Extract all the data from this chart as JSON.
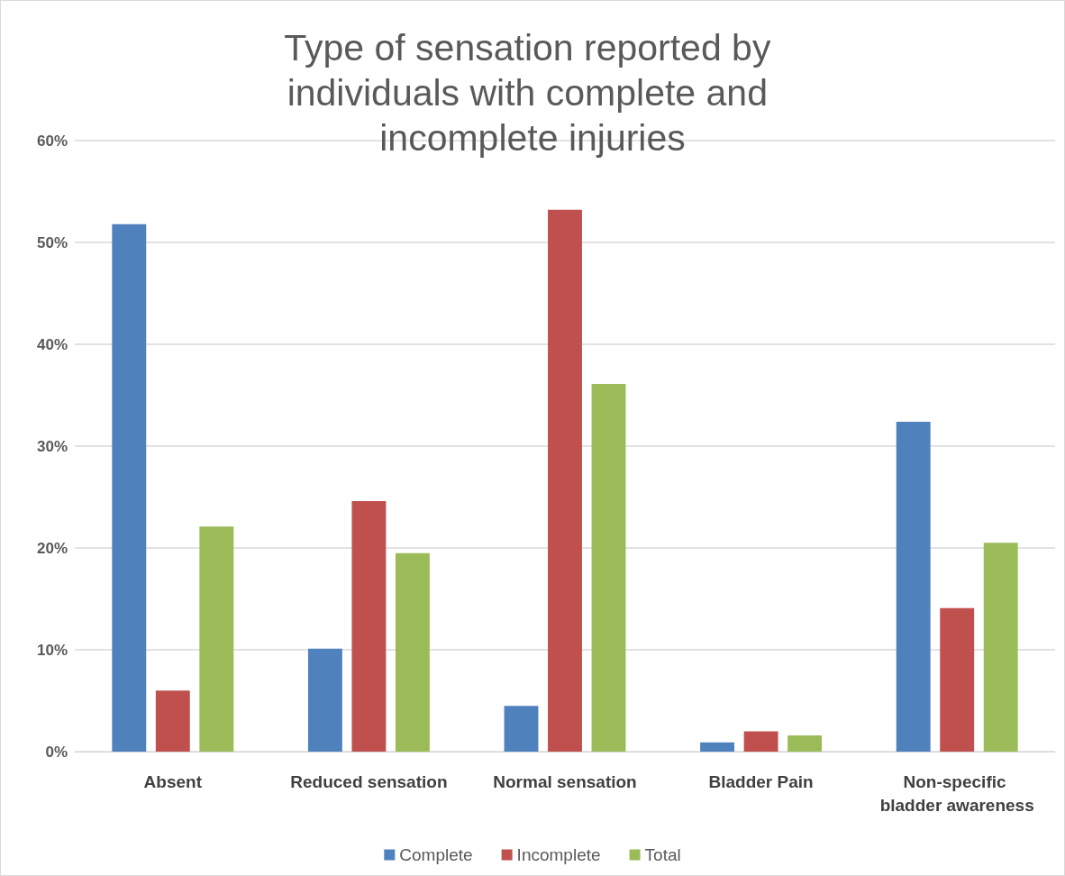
{
  "chart_data": {
    "type": "bar",
    "title": "Type of sensation reported by individuals with complete and incomplete injuries",
    "categories": [
      "Absent",
      "Reduced sensation",
      "Normal sensation",
      "Bladder Pain",
      "Non-specific bladder awareness"
    ],
    "series": [
      {
        "name": "Complete",
        "color": "#4f81bd",
        "values": [
          51.8,
          10.1,
          4.5,
          0.9,
          32.4
        ]
      },
      {
        "name": "Incomplete",
        "color": "#c0504d",
        "values": [
          6.0,
          24.6,
          53.2,
          2.0,
          14.1
        ]
      },
      {
        "name": "Total",
        "color": "#9bbb59",
        "values": [
          22.1,
          19.5,
          36.1,
          1.6,
          20.5
        ]
      }
    ],
    "ylim": [
      0,
      60
    ],
    "yticks": [
      {
        "value": 0,
        "label": "0%"
      },
      {
        "value": 10,
        "label": "10%"
      },
      {
        "value": 20,
        "label": "20%"
      },
      {
        "value": 30,
        "label": "30%"
      },
      {
        "value": 40,
        "label": "40%"
      },
      {
        "value": 50,
        "label": "50%"
      },
      {
        "value": 60,
        "label": "60%"
      }
    ],
    "grid": "y",
    "legend": "bottom"
  }
}
